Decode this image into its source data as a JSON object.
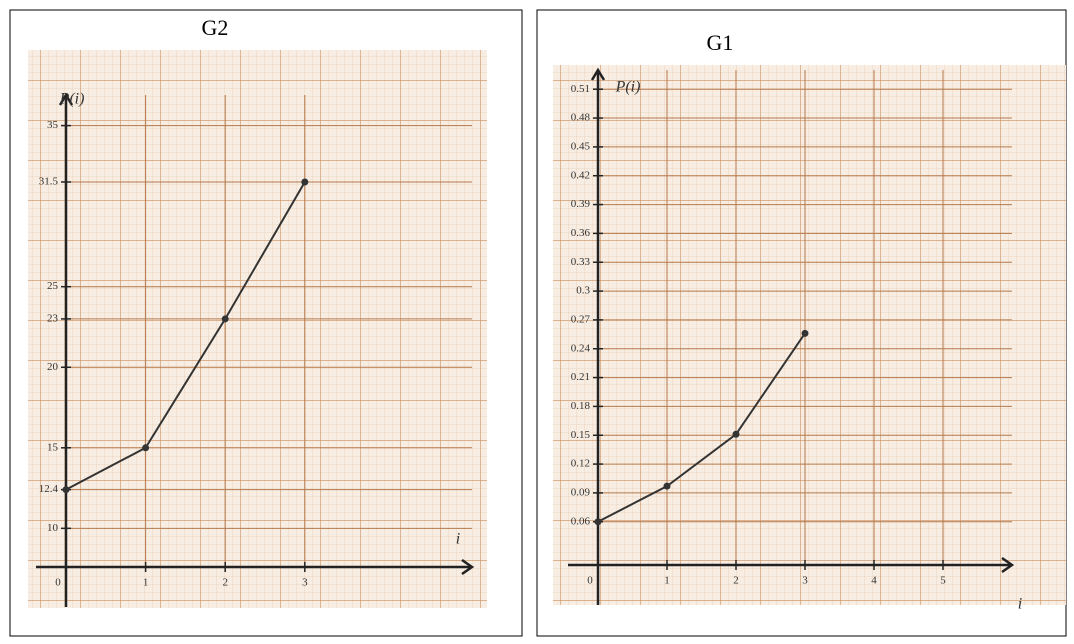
{
  "chart_data": [
    {
      "type": "line",
      "title": "G2",
      "y_label": "P(i)",
      "x_label": "i",
      "x": [
        0,
        1,
        2,
        3
      ],
      "series": [
        {
          "color": "#333333",
          "values": [
            12.4,
            15,
            23,
            31.5
          ]
        }
      ],
      "xlim": [
        0,
        5.1
      ],
      "ylim": [
        7.6,
        36.9
      ],
      "xticks": [
        0,
        1,
        2,
        3
      ],
      "yticks": [
        10,
        12.4,
        15,
        20,
        23,
        25,
        31.5,
        35
      ],
      "grid": true
    },
    {
      "type": "line",
      "title": "G1",
      "y_label": "P(i)",
      "x_label": "i",
      "x": [
        0,
        1,
        2,
        3
      ],
      "series": [
        {
          "color": "#333333",
          "values": [
            0.06,
            0.097,
            0.151,
            0.256
          ]
        }
      ],
      "xlim": [
        0,
        6
      ],
      "ylim": [
        0.015,
        0.53
      ],
      "xticks": [
        0,
        1,
        2,
        3,
        4,
        5
      ],
      "yticks": [
        0.06,
        0.09,
        0.12,
        0.15,
        0.18,
        0.21,
        0.24,
        0.27,
        0.3,
        0.33,
        0.36,
        0.39,
        0.42,
        0.45,
        0.48,
        0.51
      ],
      "grid": true
    }
  ]
}
